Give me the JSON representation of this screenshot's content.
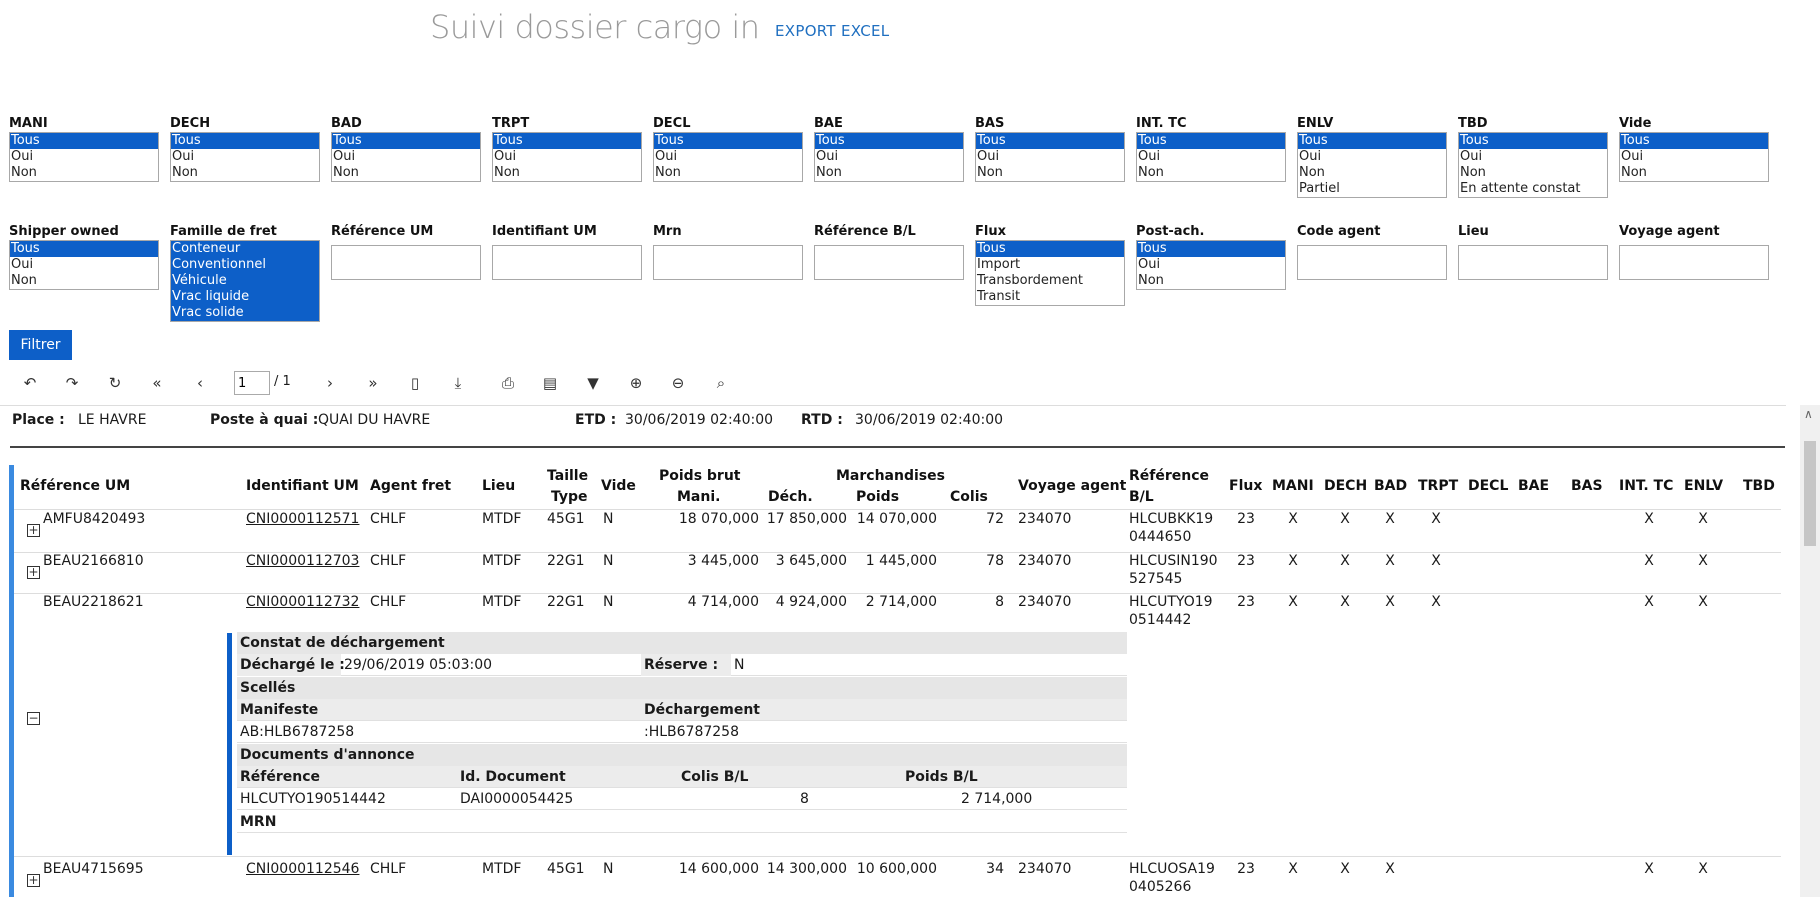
{
  "header": {
    "title": "Suivi dossier cargo in",
    "export_label": "EXPORT EXCEL"
  },
  "filters_row1": [
    {
      "label": "MANI",
      "options": [
        "Tous",
        "Oui",
        "Non"
      ],
      "selected": "Tous"
    },
    {
      "label": "DECH",
      "options": [
        "Tous",
        "Oui",
        "Non"
      ],
      "selected": "Tous"
    },
    {
      "label": "BAD",
      "options": [
        "Tous",
        "Oui",
        "Non"
      ],
      "selected": "Tous"
    },
    {
      "label": "TRPT",
      "options": [
        "Tous",
        "Oui",
        "Non"
      ],
      "selected": "Tous"
    },
    {
      "label": "DECL",
      "options": [
        "Tous",
        "Oui",
        "Non"
      ],
      "selected": "Tous"
    },
    {
      "label": "BAE",
      "options": [
        "Tous",
        "Oui",
        "Non"
      ],
      "selected": "Tous"
    },
    {
      "label": "BAS",
      "options": [
        "Tous",
        "Oui",
        "Non"
      ],
      "selected": "Tous"
    },
    {
      "label": "INT. TC",
      "options": [
        "Tous",
        "Oui",
        "Non"
      ],
      "selected": "Tous"
    },
    {
      "label": "ENLV",
      "options": [
        "Tous",
        "Oui",
        "Non",
        "Partiel"
      ],
      "selected": "Tous"
    },
    {
      "label": "TBD",
      "options": [
        "Tous",
        "Oui",
        "Non",
        "En attente constat"
      ],
      "selected": "Tous"
    },
    {
      "label": "Vide",
      "options": [
        "Tous",
        "Oui",
        "Non"
      ],
      "selected": "Tous"
    }
  ],
  "filters_row2": {
    "shipper_owned": {
      "label": "Shipper owned",
      "options": [
        "Tous",
        "Oui",
        "Non"
      ],
      "selected": "Tous"
    },
    "famille_fret": {
      "label": "Famille de fret",
      "options": [
        "Conteneur",
        "Conventionnel",
        "Véhicule",
        "Vrac liquide",
        "Vrac solide"
      ],
      "selected": "all"
    },
    "reference_um": {
      "label": "Référence UM",
      "value": ""
    },
    "identifiant_um": {
      "label": "Identifiant UM",
      "value": ""
    },
    "mrn": {
      "label": "Mrn",
      "value": ""
    },
    "reference_bl": {
      "label": "Référence B/L",
      "value": ""
    },
    "flux": {
      "label": "Flux",
      "options": [
        "Tous",
        "Import",
        "Transbordement",
        "Transit"
      ],
      "selected": "Tous"
    },
    "post_ach": {
      "label": "Post-ach.",
      "options": [
        "Tous",
        "Oui",
        "Non"
      ],
      "selected": "Tous"
    },
    "code_agent": {
      "label": "Code agent",
      "value": ""
    },
    "lieu": {
      "label": "Lieu",
      "value": ""
    },
    "voyage_agent": {
      "label": "Voyage agent",
      "value": ""
    }
  },
  "filter_button": "Filtrer",
  "toolbar": {
    "icons": [
      "back-icon",
      "forward-icon",
      "refresh-icon",
      "first-page-icon",
      "prev-page-icon",
      "next-page-icon",
      "last-page-icon",
      "page-icon",
      "export-icon",
      "print-icon",
      "print-page-icon",
      "filter-icon",
      "zoom-in-icon",
      "zoom-out-icon",
      "search-icon"
    ],
    "page": "1",
    "total": "/ 1"
  },
  "info": {
    "place_label": "Place :",
    "place": "LE HAVRE",
    "poste_label": "Poste à quai :",
    "poste": "QUAI DU HAVRE",
    "etd_label": "ETD :",
    "etd": "30/06/2019 02:40:00",
    "rtd_label": "RTD :",
    "rtd": "30/06/2019 02:40:00"
  },
  "columns": {
    "ref_um": "Référence UM",
    "ident_um": "Identifiant UM",
    "agent_fret": "Agent fret",
    "lieu": "Lieu",
    "taille": "Taille",
    "type": "Type",
    "vide": "Vide",
    "poids_brut": "Poids brut",
    "mani_w": "Mani.",
    "dech_w": "Déch.",
    "marchandises": "Marchandises",
    "poids": "Poids",
    "colis": "Colis",
    "voyage_agent": "Voyage agent",
    "ref_bl_1": "Référence",
    "ref_bl_2": "B/L",
    "flux": "Flux",
    "mani": "MANI",
    "dech": "DECH",
    "bad": "BAD",
    "trpt": "TRPT",
    "decl": "DECL",
    "bae": "BAE",
    "bas": "BAS",
    "int_tc": "INT. TC",
    "enlv": "ENLV",
    "tbd": "TBD"
  },
  "rows": [
    {
      "ref_um": "AMFU8420493",
      "ident_um": "CNI0000112571",
      "agent": "CHLF",
      "lieu": "MTDF",
      "taille_type": "45G1",
      "vide": "N",
      "mani_w": "18 070,000",
      "dech_w": "17 850,000",
      "poids": "14 070,000",
      "colis": "72",
      "voyage": "234070",
      "ref_bl_1": "HLCUBKK19",
      "ref_bl_2": "0444650",
      "flux": "23",
      "mani": "X",
      "dech": "X",
      "bad": "X",
      "trpt": "X",
      "int_tc": "X",
      "enlv": "X"
    },
    {
      "ref_um": "BEAU2166810",
      "ident_um": "CNI0000112703",
      "agent": "CHLF",
      "lieu": "MTDF",
      "taille_type": "22G1",
      "vide": "N",
      "mani_w": "3 445,000",
      "dech_w": "3 645,000",
      "poids": "1 445,000",
      "colis": "78",
      "voyage": "234070",
      "ref_bl_1": "HLCUSIN190",
      "ref_bl_2": "527545",
      "flux": "23",
      "mani": "X",
      "dech": "X",
      "bad": "X",
      "trpt": "X",
      "int_tc": "X",
      "enlv": "X"
    },
    {
      "ref_um": "BEAU2218621",
      "ident_um": "CNI0000112732",
      "agent": "CHLF",
      "lieu": "MTDF",
      "taille_type": "22G1",
      "vide": "N",
      "mani_w": "4 714,000",
      "dech_w": "4 924,000",
      "poids": "2 714,000",
      "colis": "8",
      "voyage": "234070",
      "ref_bl_1": "HLCUTYO19",
      "ref_bl_2": "0514442",
      "flux": "23",
      "mani": "X",
      "dech": "X",
      "bad": "X",
      "trpt": "X",
      "int_tc": "X",
      "enlv": "X"
    },
    {
      "ref_um": "BEAU4715695",
      "ident_um": "CNI0000112546",
      "agent": "CHLF",
      "lieu": "MTDF",
      "taille_type": "45G1",
      "vide": "N",
      "mani_w": "14 600,000",
      "dech_w": "14 300,000",
      "poids": "10 600,000",
      "colis": "34",
      "voyage": "234070",
      "ref_bl_1": "HLCUOSA19",
      "ref_bl_2": "0405266",
      "flux": "23",
      "mani": "X",
      "dech": "X",
      "bad": "X",
      "trpt": "",
      "int_tc": "X",
      "enlv": "X"
    }
  ],
  "detail": {
    "constat_title": "Constat de déchargement",
    "decharge_label": "Déchargé le :",
    "decharge_value": "29/06/2019 05:03:00",
    "reserve_label": "Réserve :",
    "reserve_value": "N",
    "scelles_title": "Scellés",
    "manifeste_label": "Manifeste",
    "dechargement_label": "Déchargement",
    "manifeste_value": "AB:HLB6787258",
    "dechargement_value": ":HLB6787258",
    "docs_title": "Documents d'annonce",
    "doc_ref_label": "Référence",
    "doc_id_label": "Id. Document",
    "doc_colis_label": "Colis B/L",
    "doc_poids_label": "Poids B/L",
    "doc_ref": "HLCUTYO190514442",
    "doc_id": "DAI0000054425",
    "doc_colis": "8",
    "doc_poids": "2 714,000",
    "mrn_title": "MRN"
  },
  "expander_plus": "+",
  "expander_minus": "−"
}
